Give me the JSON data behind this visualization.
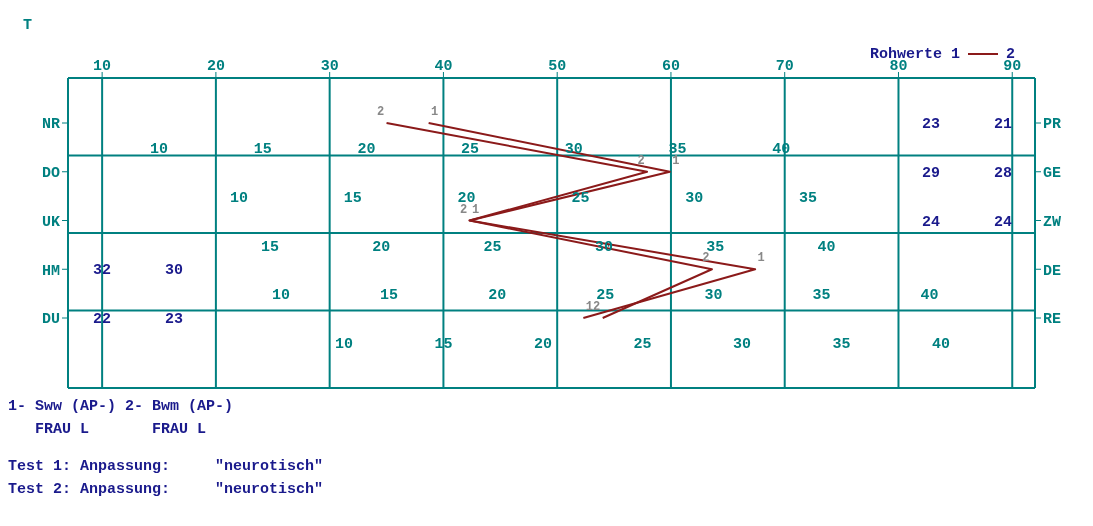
{
  "chart_data": {
    "type": "line",
    "orientation": "horizontal",
    "xlabel": "T",
    "legend_title": "Rohwerte",
    "legend": "top right",
    "categories": [
      "NR",
      "DO",
      "UK",
      "HM",
      "DU"
    ],
    "y2_categories": [
      "PR",
      "GE",
      "ZW",
      "DE",
      "RE"
    ],
    "xlim": [
      7,
      92
    ],
    "xticks": [
      10,
      20,
      30,
      40,
      50,
      60,
      70,
      80,
      90
    ],
    "grid": true,
    "series": [
      {
        "name": "1",
        "color": "#8b1a1a",
        "values": [
          38.7,
          59.9,
          42.3,
          67.4,
          52.3
        ]
      },
      {
        "name": "2",
        "color": "#8b1a1a",
        "values": [
          35.0,
          57.9,
          42.3,
          63.6,
          54.0
        ]
      }
    ],
    "annotations": [
      "10 15 20 25 30 35 40",
      "10 15 20 25 30 35",
      "15 20 25 30 35 40",
      "10 15 20 25 30 35 40",
      "10 15 20 25 30 35 40",
      "23 21",
      "29 28",
      "24 24",
      "32 30",
      "22 23",
      "1- Sww (AP-) 2- Bwm (AP-)",
      "   FRAU L       FRAU L",
      "Test 1: Anpassung:     \"neurotisch\"",
      "Test 2: Anpassung:     \"neurotisch\""
    ]
  }
}
